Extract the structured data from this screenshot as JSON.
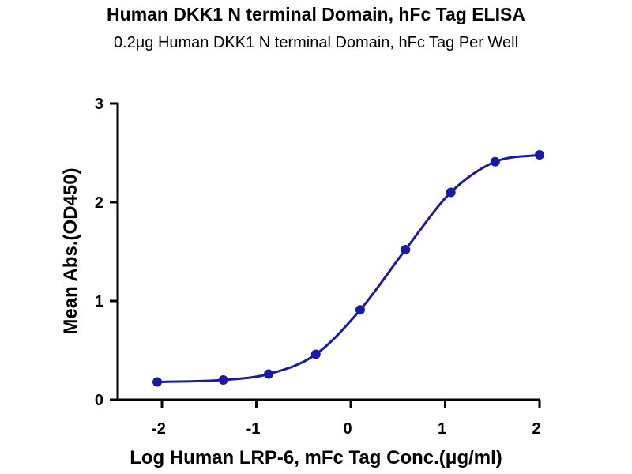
{
  "chart_data": {
    "type": "scatter",
    "title": "Human DKK1 N terminal Domain, hFc Tag ELISA",
    "subtitle": "0.2μg Human DKK1 N terminal Domain, hFc Tag Per Well",
    "xlabel": "Log Human LRP-6, mFc Tag Conc.(μg/ml)",
    "ylabel": "Mean Abs.(OD450)",
    "xlim": [
      -2.5,
      2
    ],
    "ylim": [
      0,
      3
    ],
    "x_ticks": [
      -2,
      -1,
      0,
      1,
      2
    ],
    "y_ticks": [
      0,
      1,
      2,
      3
    ],
    "grid": false,
    "series": [
      {
        "color": "#1a1aa6",
        "x": [
          -2.05,
          -1.35,
          -0.87,
          -0.37,
          0.1,
          0.58,
          1.06,
          1.53,
          2.0
        ],
        "y": [
          0.18,
          0.2,
          0.26,
          0.46,
          0.91,
          1.52,
          2.1,
          2.41,
          2.48
        ],
        "fit": "sigmoidal"
      }
    ]
  }
}
